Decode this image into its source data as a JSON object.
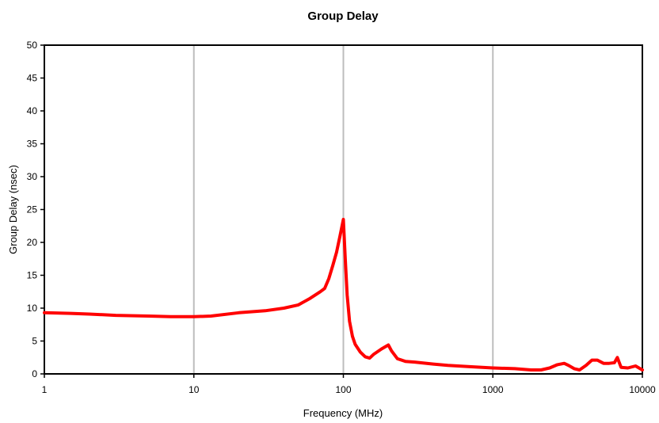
{
  "chart_data": {
    "type": "line",
    "title": "Group Delay",
    "xlabel": "Frequency (MHz)",
    "ylabel": "Group Delay (nsec)",
    "x_scale": "log",
    "xlim": [
      1,
      10000
    ],
    "ylim": [
      0,
      50
    ],
    "x_ticks": [
      "1",
      "10",
      "100",
      "1000",
      "10000"
    ],
    "y_ticks": [
      "0",
      "5",
      "10",
      "15",
      "20",
      "25",
      "30",
      "35",
      "40",
      "45",
      "50"
    ],
    "grid": "vertical-major",
    "legend": "none",
    "series": [
      {
        "color": "#ff0000",
        "x": [
          1,
          1.5,
          2,
          3,
          5,
          7,
          10,
          13,
          20,
          30,
          40,
          50,
          60,
          70,
          75,
          80,
          85,
          90,
          95,
          100,
          103,
          106,
          110,
          115,
          120,
          130,
          140,
          150,
          160,
          180,
          200,
          210,
          230,
          260,
          300,
          400,
          500,
          700,
          1000,
          1400,
          1800,
          2100,
          2400,
          2700,
          3000,
          3200,
          3500,
          3800,
          4200,
          4600,
          5000,
          5500,
          6000,
          6500,
          6800,
          7200,
          8000,
          9000,
          10000
        ],
        "y": [
          9.3,
          9.2,
          9.1,
          8.9,
          8.8,
          8.7,
          8.7,
          8.8,
          9.3,
          9.6,
          10.0,
          10.5,
          11.5,
          12.5,
          13.0,
          14.5,
          16.5,
          18.5,
          21.0,
          23.5,
          17.5,
          12.0,
          8.0,
          5.7,
          4.5,
          3.3,
          2.6,
          2.4,
          3.0,
          3.8,
          4.4,
          3.5,
          2.3,
          1.9,
          1.8,
          1.5,
          1.3,
          1.1,
          0.9,
          0.8,
          0.6,
          0.6,
          0.9,
          1.4,
          1.6,
          1.3,
          0.8,
          0.6,
          1.3,
          2.1,
          2.1,
          1.6,
          1.6,
          1.7,
          2.5,
          1.0,
          0.9,
          1.2,
          0.6
        ]
      }
    ]
  }
}
